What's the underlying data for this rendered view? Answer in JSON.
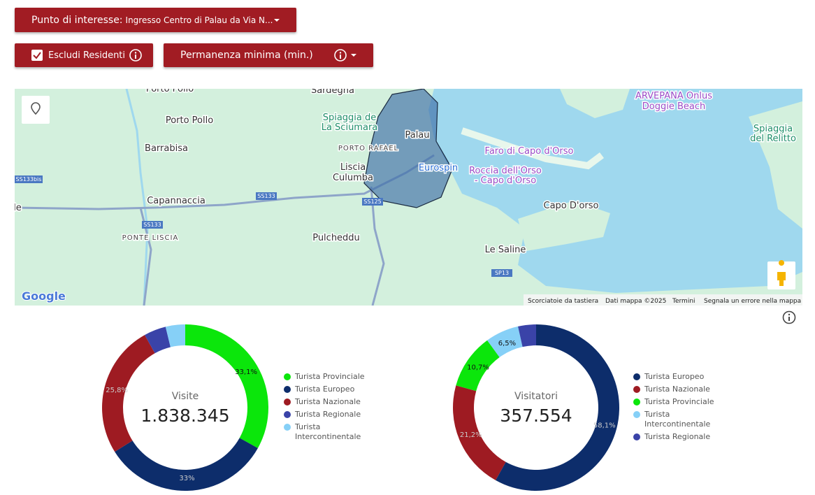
{
  "controls": {
    "poi_label": "Punto di interesse:",
    "poi_value": "Ingresso Centro di Palau da Via N...",
    "exclude_residents": "Escludi Residenti",
    "min_stay": "Permanenza minima (min.)"
  },
  "map": {
    "labels": [
      "Porto Pollo",
      "Sardegna",
      [
        "Spiaggia de",
        "La Sciumara"
      ],
      "Palau",
      "PORTO RAFAEL",
      [
        "Liscia",
        "Culumba"
      ],
      "Eurospin",
      "Faro di Capo d'Orso",
      [
        "Roccia dell'Orso",
        "- Capo d'Orso"
      ],
      [
        "ARVEPANA Onlus",
        "Doggie Beach"
      ],
      [
        "Spiaggia",
        "del Relitto"
      ],
      "Porto Pollo",
      "Barrabisa",
      "SS133bis",
      "Capannaccia",
      "SS133",
      "SS125",
      "SS133",
      "PONTE LISCIA",
      "Pulcheddu",
      "Capo D'orso",
      "Le Saline",
      "SP13",
      "le"
    ],
    "logo": "Google",
    "footer": [
      "Scorciatoie da tastiera",
      "Dati mappa ©2025",
      "Termini",
      "Segnala un errore nella mappa"
    ]
  },
  "chart_data": [
    {
      "type": "donut",
      "center_label": "Visite",
      "total": "1.838.345",
      "categories": [
        "Turista Provinciale",
        "Turista Europeo",
        "Turista Nazionale",
        "Turista Regionale",
        "Turista Intercontinentale"
      ],
      "values": [
        33.1,
        33,
        25.8,
        4.3,
        3.8
      ],
      "value_labels": [
        "33,1%",
        "33%",
        "25,8%",
        null,
        null
      ],
      "colors": [
        "#0be60b",
        "#0d2d6b",
        "#9e1b22",
        "#3a43a8",
        "#86d0f7"
      ]
    },
    {
      "type": "donut",
      "center_label": "Visitatori",
      "total": "357.554",
      "categories": [
        "Turista Europeo",
        "Turista Nazionale",
        "Turista Provinciale",
        "Turista Intercontinentale",
        "Turista Regionale"
      ],
      "values": [
        58.1,
        21.2,
        10.7,
        6.5,
        3.5
      ],
      "value_labels": [
        "58,1%",
        "21,2%",
        "10,7%",
        "6,5%",
        null
      ],
      "colors": [
        "#0d2d6b",
        "#9e1b22",
        "#0be60b",
        "#86d0f7",
        "#3a43a8"
      ]
    }
  ]
}
